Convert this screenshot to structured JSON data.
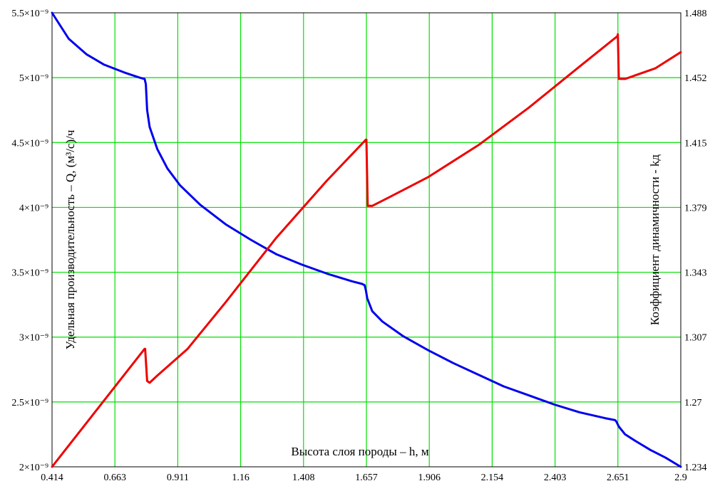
{
  "chart_data": {
    "type": "line",
    "xlabel": "Высота слоя породы – h, м",
    "ylabel_left": "Удельная производительность – Q, (м³/с)/ч",
    "ylabel_right": "Коэффициент динамичности - kд",
    "x_ticks": [
      "0.414",
      "0.663",
      "0.911",
      "1.16",
      "1.408",
      "1.657",
      "1.906",
      "2.154",
      "2.403",
      "2.651",
      "2.9"
    ],
    "y_left_ticks": [
      "2×10⁻⁹",
      "2.5×10⁻⁹",
      "3×10⁻⁹",
      "3.5×10⁻⁹",
      "4×10⁻⁹",
      "4.5×10⁻⁹",
      "5×10⁻⁹",
      "5.5×10⁻⁹"
    ],
    "y_right_ticks": [
      "1.234",
      "1.27",
      "1.307",
      "1.343",
      "1.379",
      "1.415",
      "1.452",
      "1.488"
    ],
    "xlim": [
      0.414,
      2.9
    ],
    "ylim_left": [
      2e-09,
      5.5e-09
    ],
    "ylim_right": [
      1.234,
      1.488
    ],
    "grid": true,
    "grid_color": "#00e000",
    "series": [
      {
        "axis": "left",
        "color": "#0000ee",
        "points": [
          [
            0.414,
            5.5e-09
          ],
          [
            0.48,
            5.3e-09
          ],
          [
            0.55,
            5.18e-09
          ],
          [
            0.62,
            5.1e-09
          ],
          [
            0.7,
            5.04e-09
          ],
          [
            0.76,
            5e-09
          ],
          [
            0.78,
            4.99e-09
          ],
          [
            0.785,
            4.95e-09
          ],
          [
            0.79,
            4.75e-09
          ],
          [
            0.8,
            4.62e-09
          ],
          [
            0.83,
            4.45e-09
          ],
          [
            0.87,
            4.3e-09
          ],
          [
            0.92,
            4.17e-09
          ],
          [
            1.0,
            4.02e-09
          ],
          [
            1.1,
            3.87e-09
          ],
          [
            1.2,
            3.75e-09
          ],
          [
            1.3,
            3.64e-09
          ],
          [
            1.4,
            3.56e-09
          ],
          [
            1.5,
            3.49e-09
          ],
          [
            1.6,
            3.43e-09
          ],
          [
            1.64,
            3.41e-09
          ],
          [
            1.65,
            3.4e-09
          ],
          [
            1.655,
            3.36e-09
          ],
          [
            1.66,
            3.3e-09
          ],
          [
            1.68,
            3.2e-09
          ],
          [
            1.72,
            3.12e-09
          ],
          [
            1.8,
            3.01e-09
          ],
          [
            1.9,
            2.9e-09
          ],
          [
            2.0,
            2.8e-09
          ],
          [
            2.1,
            2.71e-09
          ],
          [
            2.2,
            2.62e-09
          ],
          [
            2.3,
            2.55e-09
          ],
          [
            2.4,
            2.48e-09
          ],
          [
            2.5,
            2.42e-09
          ],
          [
            2.6,
            2.375e-09
          ],
          [
            2.64,
            2.36e-09
          ],
          [
            2.645,
            2.35e-09
          ],
          [
            2.655,
            2.31e-09
          ],
          [
            2.68,
            2.25e-09
          ],
          [
            2.72,
            2.2e-09
          ],
          [
            2.78,
            2.13e-09
          ],
          [
            2.84,
            2.07e-09
          ],
          [
            2.9,
            2e-09
          ]
        ]
      },
      {
        "axis": "right",
        "color": "#ee0000",
        "points": [
          [
            0.414,
            1.234
          ],
          [
            0.78,
            1.3
          ],
          [
            0.782,
            1.3
          ],
          [
            0.79,
            1.282
          ],
          [
            0.8,
            1.281
          ],
          [
            0.83,
            1.285
          ],
          [
            0.95,
            1.3
          ],
          [
            1.1,
            1.326
          ],
          [
            1.3,
            1.362
          ],
          [
            1.5,
            1.394
          ],
          [
            1.655,
            1.417
          ],
          [
            1.657,
            1.417
          ],
          [
            1.662,
            1.38
          ],
          [
            1.68,
            1.38
          ],
          [
            1.75,
            1.385
          ],
          [
            1.9,
            1.396
          ],
          [
            2.1,
            1.414
          ],
          [
            2.3,
            1.435
          ],
          [
            2.5,
            1.458
          ],
          [
            2.65,
            1.475
          ],
          [
            2.651,
            1.476
          ],
          [
            2.655,
            1.451
          ],
          [
            2.68,
            1.451
          ],
          [
            2.8,
            1.457
          ],
          [
            2.9,
            1.466
          ]
        ]
      }
    ]
  }
}
